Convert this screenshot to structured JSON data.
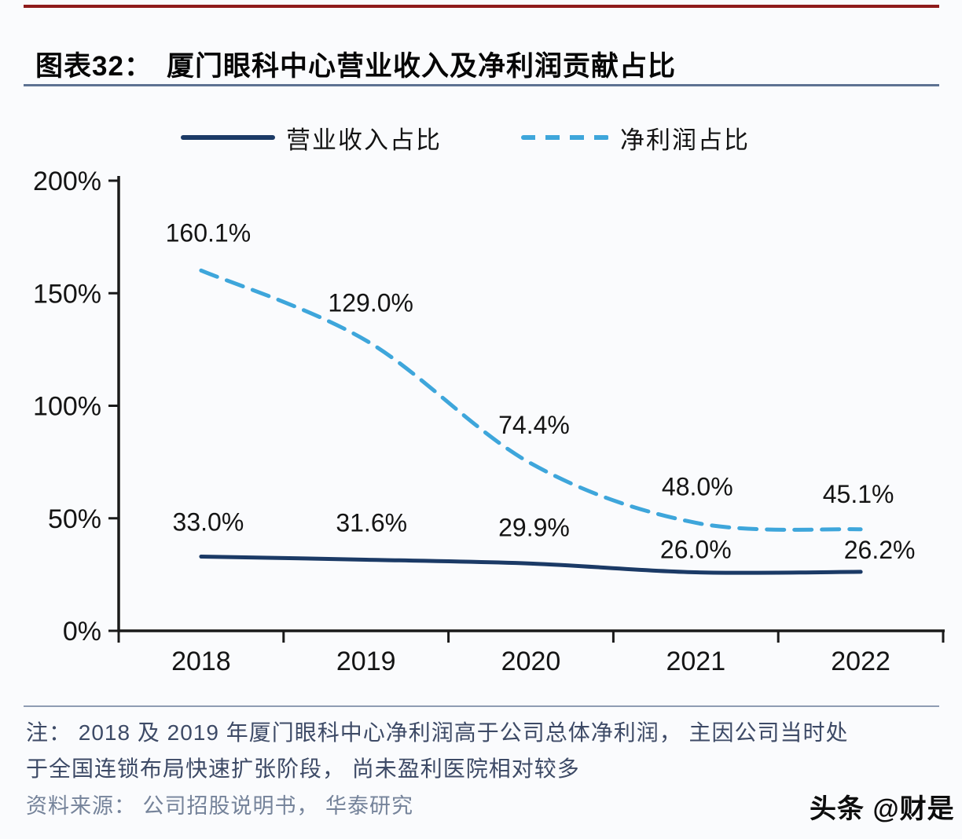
{
  "header": {
    "title_prefix": "图表32：",
    "title": "厦门眼科中心营业收入及净利润贡献占比"
  },
  "colors": {
    "top_rule": "#8e1b1b",
    "title_underline": "#5d7292",
    "axis": "#1a1a1a",
    "revenue_line": "#1b3a66",
    "profit_line": "#3ea6db",
    "note_text": "#3d4a66",
    "source_text": "#75839a"
  },
  "chart_data": {
    "type": "line",
    "categories": [
      "2018",
      "2019",
      "2020",
      "2021",
      "2022"
    ],
    "series": [
      {
        "name": "营业收入占比",
        "style": "solid",
        "color": "#1b3a66",
        "values": [
          33.0,
          31.6,
          29.9,
          26.0,
          26.2
        ],
        "labels": [
          "33.0%",
          "31.6%",
          "29.9%",
          "26.0%",
          "26.2%"
        ]
      },
      {
        "name": "净利润占比",
        "style": "dashed",
        "color": "#3ea6db",
        "values": [
          160.1,
          129.0,
          74.4,
          48.0,
          45.1
        ],
        "labels": [
          "160.1%",
          "129.0%",
          "74.4%",
          "48.0%",
          "45.1%"
        ]
      }
    ],
    "ylim": [
      0,
      200
    ],
    "ytick_step": 50,
    "ytick_labels": [
      "0%",
      "50%",
      "100%",
      "150%",
      "200%"
    ],
    "grid": false,
    "legend_position": "top"
  },
  "footer": {
    "note_lines": [
      "注： 2018 及 2019 年厦门眼科中心净利润高于公司总体净利润， 主因公司当时处",
      "于全国连锁布局快速扩张阶段， 尚未盈利医院相对较多"
    ],
    "source": "资料来源： 公司招股说明书， 华泰研究",
    "watermark": "头条 @财是"
  }
}
